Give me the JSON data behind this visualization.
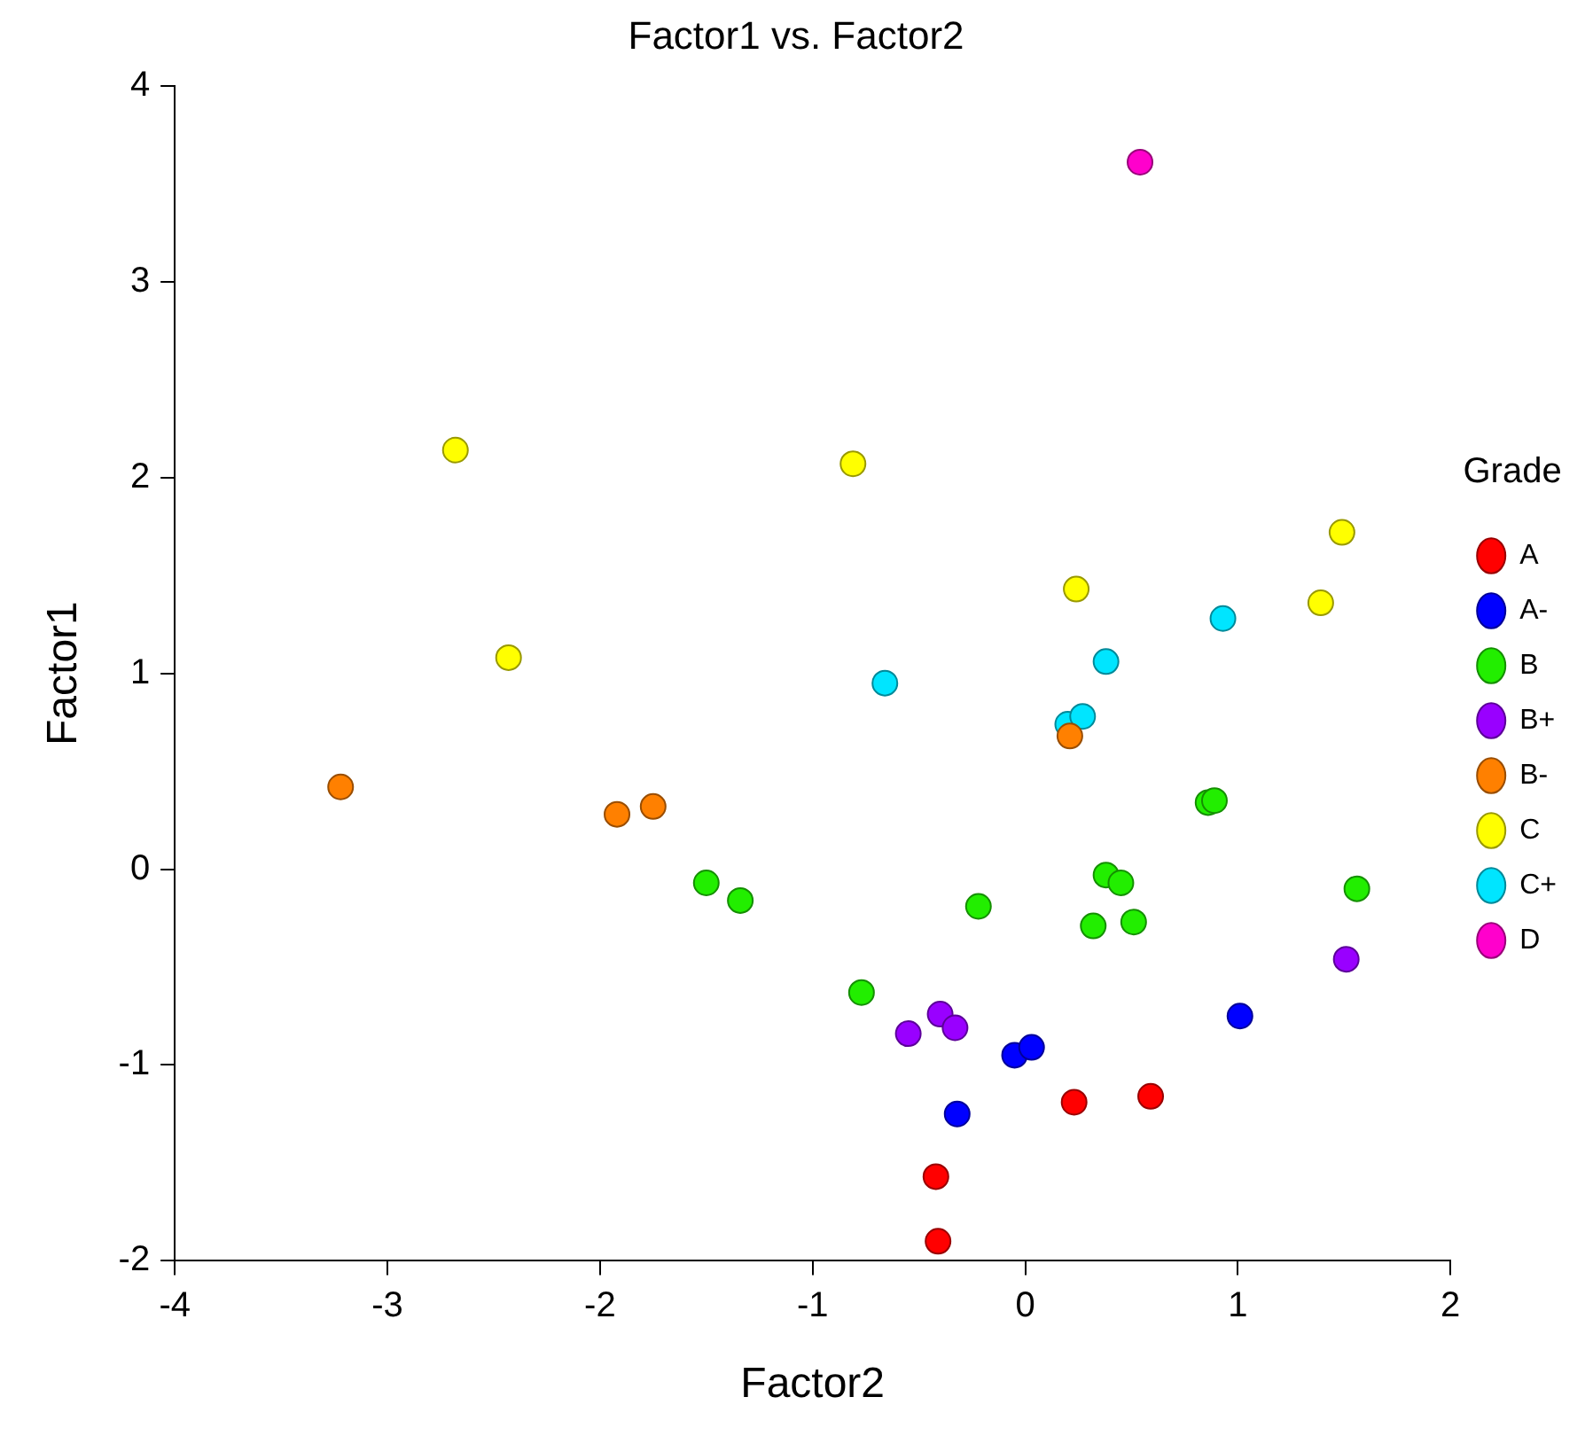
{
  "chart_data": {
    "type": "scatter",
    "title": "Factor1 vs. Factor2",
    "xlabel": "Factor2",
    "ylabel": "Factor1",
    "legend_title": "Grade",
    "legend": "right",
    "grid": false,
    "marker": "circle",
    "xlim": [
      -4,
      2
    ],
    "xticks": [
      -4,
      -3,
      -2,
      -1,
      0,
      1,
      2
    ],
    "ylim": [
      -2,
      4
    ],
    "yticks": [
      -2,
      -1,
      0,
      1,
      2,
      3,
      4
    ],
    "series": [
      {
        "name": "A",
        "color": "#ff0000",
        "x": [
          0.23,
          0.59,
          -0.42,
          -0.41
        ],
        "values": [
          -1.19,
          -1.16,
          -1.57,
          -1.9
        ]
      },
      {
        "name": "A-",
        "color": "#0000ff",
        "x": [
          -0.05,
          0.03,
          -0.32,
          1.01
        ],
        "values": [
          -0.95,
          -0.91,
          -1.25,
          -0.75
        ]
      },
      {
        "name": "B",
        "color": "#22ee00",
        "x": [
          -1.5,
          -1.34,
          -0.77,
          -0.22,
          0.32,
          0.38,
          0.45,
          0.51,
          0.86,
          0.89,
          1.56
        ],
        "values": [
          -0.07,
          -0.16,
          -0.63,
          -0.19,
          -0.29,
          -0.03,
          -0.07,
          -0.27,
          0.34,
          0.35,
          -0.1
        ]
      },
      {
        "name": "B+",
        "color": "#9900ff",
        "x": [
          -0.55,
          -0.4,
          -0.33,
          1.51
        ],
        "values": [
          -0.84,
          -0.74,
          -0.81,
          -0.46
        ]
      },
      {
        "name": "B-",
        "color": "#ff8000",
        "x": [
          -3.22,
          -1.92,
          -1.75,
          0.21
        ],
        "values": [
          0.42,
          0.28,
          0.32,
          0.68
        ]
      },
      {
        "name": "C",
        "color": "#ffff00",
        "x": [
          -2.68,
          -2.43,
          -0.81,
          0.24,
          1.49,
          1.39
        ],
        "values": [
          2.14,
          1.08,
          2.07,
          1.43,
          1.72,
          1.36
        ]
      },
      {
        "name": "C+",
        "color": "#00e5ff",
        "x": [
          -0.66,
          0.38,
          0.93,
          0.2,
          0.27
        ],
        "values": [
          0.95,
          1.06,
          1.28,
          0.74,
          0.78
        ]
      },
      {
        "name": "D",
        "color": "#ff00cc",
        "x": [
          0.54
        ],
        "values": [
          3.61
        ]
      }
    ]
  }
}
